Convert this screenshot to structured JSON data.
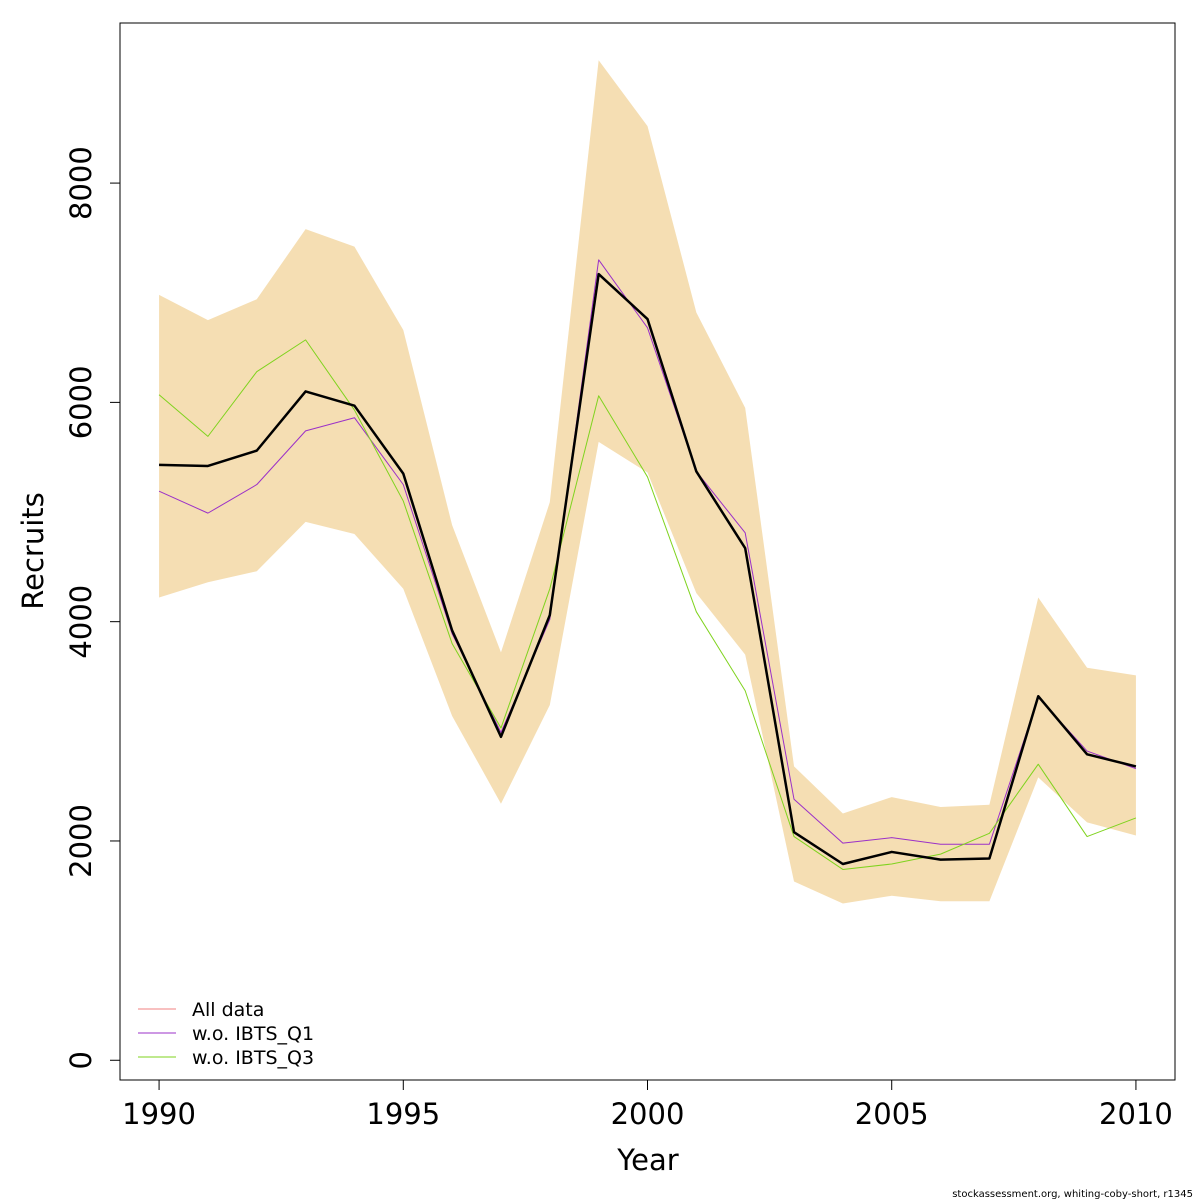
{
  "chart_data": {
    "type": "line",
    "xlabel": "Year",
    "ylabel": "Recruits",
    "xlim": [
      1989.2,
      2010.8
    ],
    "ylim": [
      -180,
      9460
    ],
    "x_ticks": [
      "1990",
      "1995",
      "2000",
      "2005",
      "2010"
    ],
    "y_ticks": [
      "0",
      "2000",
      "4000",
      "6000",
      "8000"
    ],
    "x": [
      1990,
      1991,
      1992,
      1993,
      1994,
      1995,
      1996,
      1997,
      1998,
      1999,
      2000,
      2001,
      2002,
      2003,
      2004,
      2005,
      2006,
      2007,
      2008,
      2009,
      2010
    ],
    "band": {
      "color": "#F5DEB3",
      "lower": [
        4220,
        4360,
        4460,
        4910,
        4800,
        4300,
        3140,
        2340,
        3240,
        5640,
        5360,
        4260,
        3700,
        1630,
        1430,
        1500,
        1450,
        1450,
        2580,
        2170,
        2050
      ],
      "upper": [
        6980,
        6750,
        6940,
        7580,
        7420,
        6660,
        4880,
        3720,
        5090,
        9120,
        8520,
        6820,
        5950,
        2680,
        2250,
        2400,
        2310,
        2330,
        4220,
        3580,
        3510
      ]
    },
    "series": [
      {
        "name": "All data",
        "color": "#F08080",
        "width": 1,
        "values": [
          5430,
          5420,
          5560,
          6100,
          5970,
          5350,
          3920,
          2950,
          4060,
          7170,
          6760,
          5370,
          4670,
          2080,
          1790,
          1900,
          1830,
          1840,
          3320,
          2790,
          2680
        ]
      },
      {
        "name": "w.o. IBTS_Q1",
        "color": "#9B30C8",
        "width": 1,
        "values": [
          5190,
          4990,
          5250,
          5740,
          5860,
          5250,
          3890,
          2990,
          4020,
          7300,
          6680,
          5370,
          4810,
          2380,
          1980,
          2030,
          1970,
          1970,
          3310,
          2820,
          2660
        ]
      },
      {
        "name": "w.o. IBTS_Q3",
        "color": "#7FD31E",
        "width": 1,
        "values": [
          6070,
          5690,
          6280,
          6570,
          5930,
          5100,
          3800,
          3030,
          4300,
          6060,
          5320,
          4090,
          3370,
          2040,
          1740,
          1790,
          1880,
          2070,
          2700,
          2040,
          2210
        ]
      },
      {
        "name": "",
        "color": "#000000",
        "width": 2.5,
        "values": [
          5430,
          5420,
          5560,
          6100,
          5970,
          5350,
          3920,
          2950,
          4060,
          7170,
          6760,
          5370,
          4670,
          2080,
          1790,
          1900,
          1830,
          1840,
          3320,
          2790,
          2680
        ]
      }
    ],
    "legend": {
      "position": "bottom-left",
      "entries": [
        {
          "label": "All data",
          "color": "#F08080"
        },
        {
          "label": "w.o. IBTS_Q1",
          "color": "#9B30C8"
        },
        {
          "label": "w.o. IBTS_Q3",
          "color": "#7FD31E"
        }
      ]
    },
    "grid": false
  },
  "footer": "stockassessment.org, whiting-coby-short, r1345"
}
